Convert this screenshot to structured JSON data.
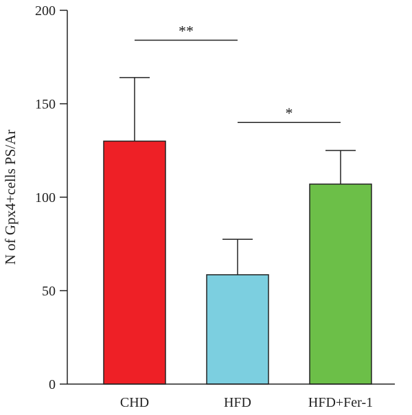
{
  "chart_data": {
    "type": "bar",
    "title": "",
    "xlabel": "",
    "ylabel": "N of Gpx4+cells PS/Ar",
    "ylim": [
      0,
      200
    ],
    "yticks": [
      0,
      50,
      100,
      150,
      200
    ],
    "ytick_labels": [
      "0",
      "50",
      "100",
      "150",
      "200"
    ],
    "categories": [
      "CHD",
      "HFD",
      "HFD+Fer-1"
    ],
    "values": [
      130,
      58.5,
      107
    ],
    "error_upper": [
      164,
      77.5,
      125
    ],
    "colors": [
      "#ee2026",
      "#7ccfe0",
      "#6cbf48"
    ],
    "grid": false,
    "legend": "none",
    "significance": [
      {
        "from": 0,
        "to": 1,
        "y": 184,
        "label": "**"
      },
      {
        "from": 1,
        "to": 2,
        "y": 140,
        "label": "*"
      }
    ]
  }
}
